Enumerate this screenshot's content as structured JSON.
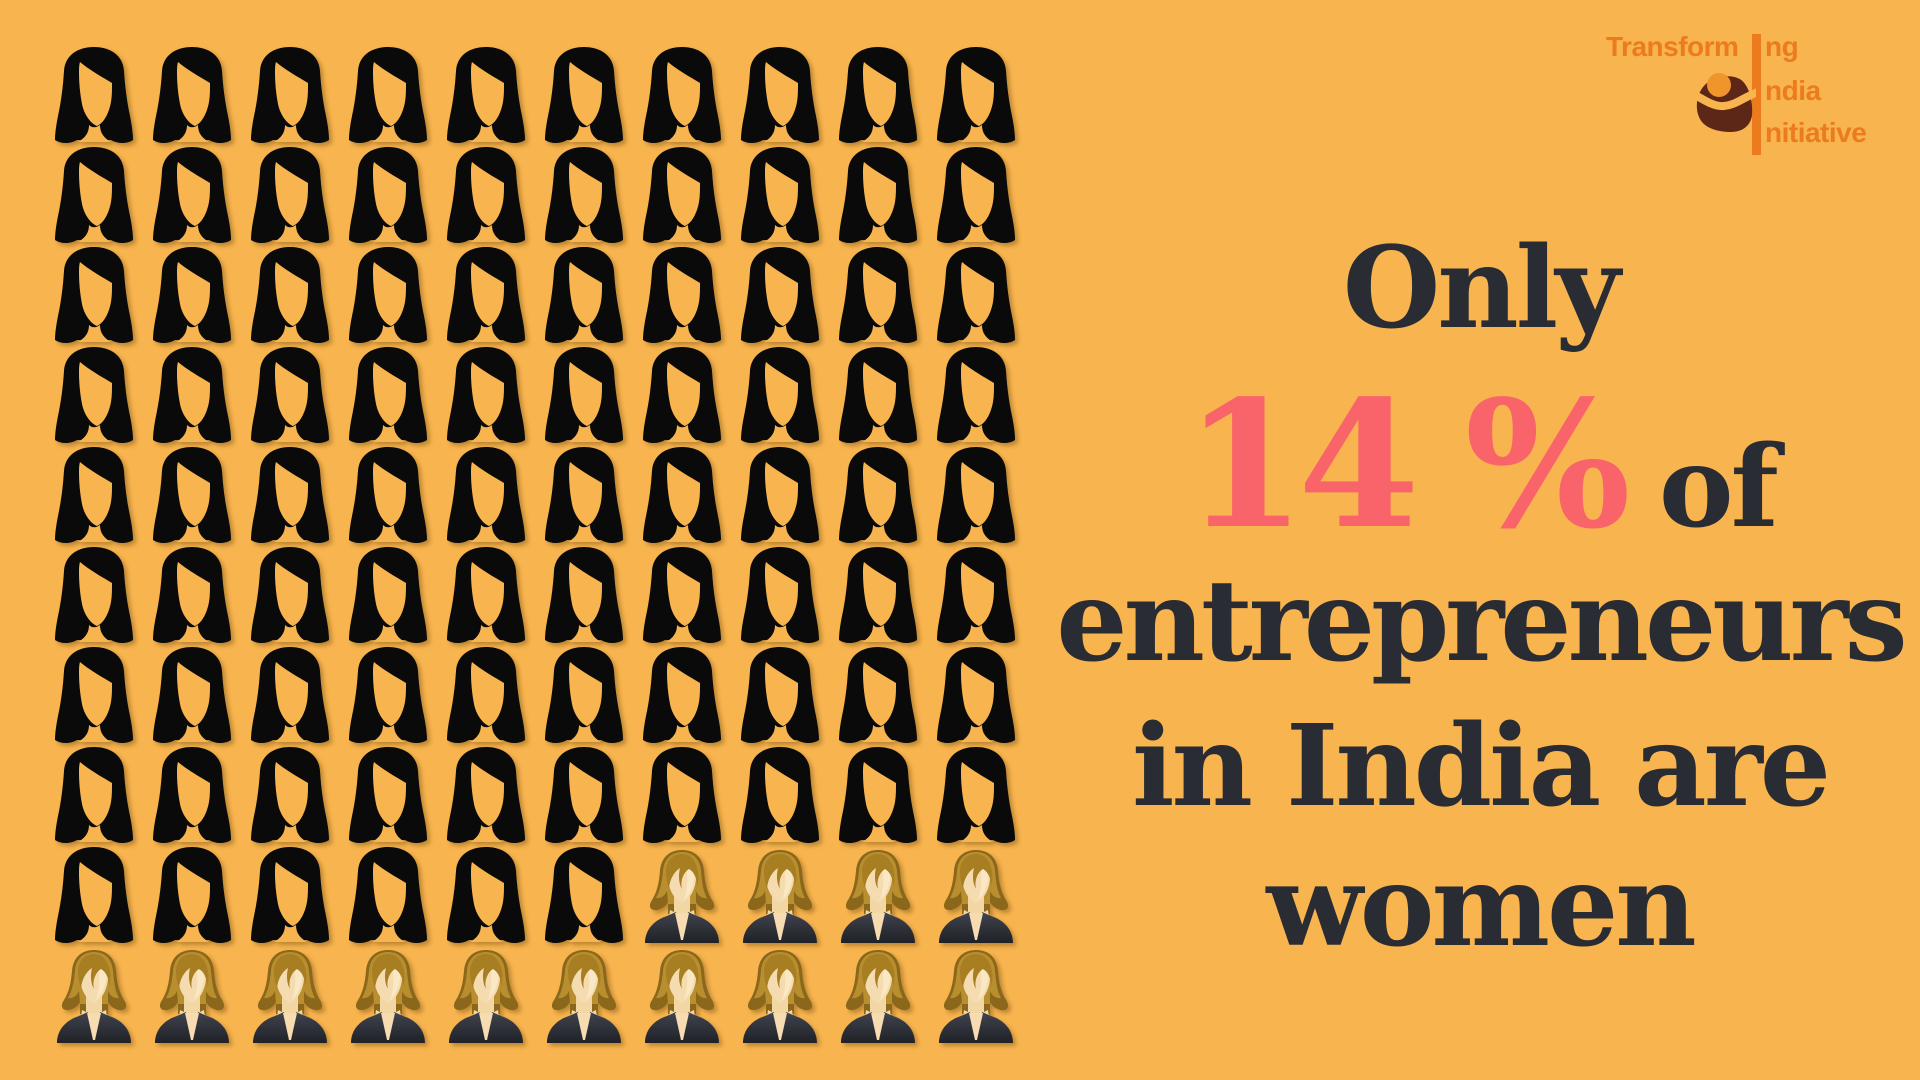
{
  "background_color": "#F8B44E",
  "headline": {
    "line1": "Only",
    "percent": "14 %",
    "of_word": "of",
    "line3": "entrepreneurs",
    "line4": "in India are",
    "line5": "women",
    "text_color": "#2A2C34",
    "accent_color": "#F9646A"
  },
  "logo": {
    "full_name": "Transforming India Initiative",
    "line1_prefix": "Transform",
    "line1_suffix": "ng",
    "line2": "ndia",
    "line3": "nitiative",
    "orange": "#EC7B1E",
    "maroon": "#5D2718",
    "head_orange": "#F0942C"
  },
  "chart_data": {
    "type": "pictograph",
    "title": "Only 14 % of entrepreneurs in India are women",
    "value": 14,
    "unit": "%",
    "total_icons": 100,
    "highlighted_icons": 14,
    "plain_icons": 86,
    "grid": {
      "columns": 10,
      "rows": 10
    },
    "highlight_rule": "last 14 icons in reading order (row 9 columns 7-10 and all of row 10)",
    "icon_plain": "black woman silhouette",
    "icon_highlighted": "blonde businesswoman in dark suit",
    "colors": {
      "plain_icon": "#0A0A0A",
      "highlight_hair_dark": "#8A671B",
      "highlight_hair_mid": "#B98E2F",
      "highlight_face": "#F5DCB0",
      "highlight_suit": "#26272D"
    }
  }
}
